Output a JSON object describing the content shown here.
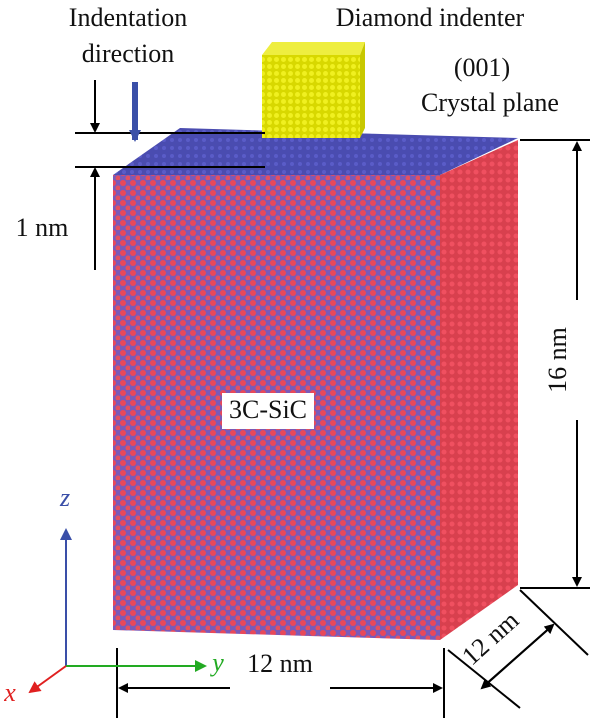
{
  "labels": {
    "indentation": [
      "Indentation",
      "direction"
    ],
    "indenter": "Diamond indenter",
    "plane": [
      "(001)",
      "Crystal plane"
    ],
    "depth": "1 nm",
    "height": "16 nm",
    "material": "3C-SiC",
    "width": "12 nm",
    "depth_side": "12 nm",
    "axes": {
      "z": "z",
      "y": "y",
      "x": "x"
    }
  }
}
